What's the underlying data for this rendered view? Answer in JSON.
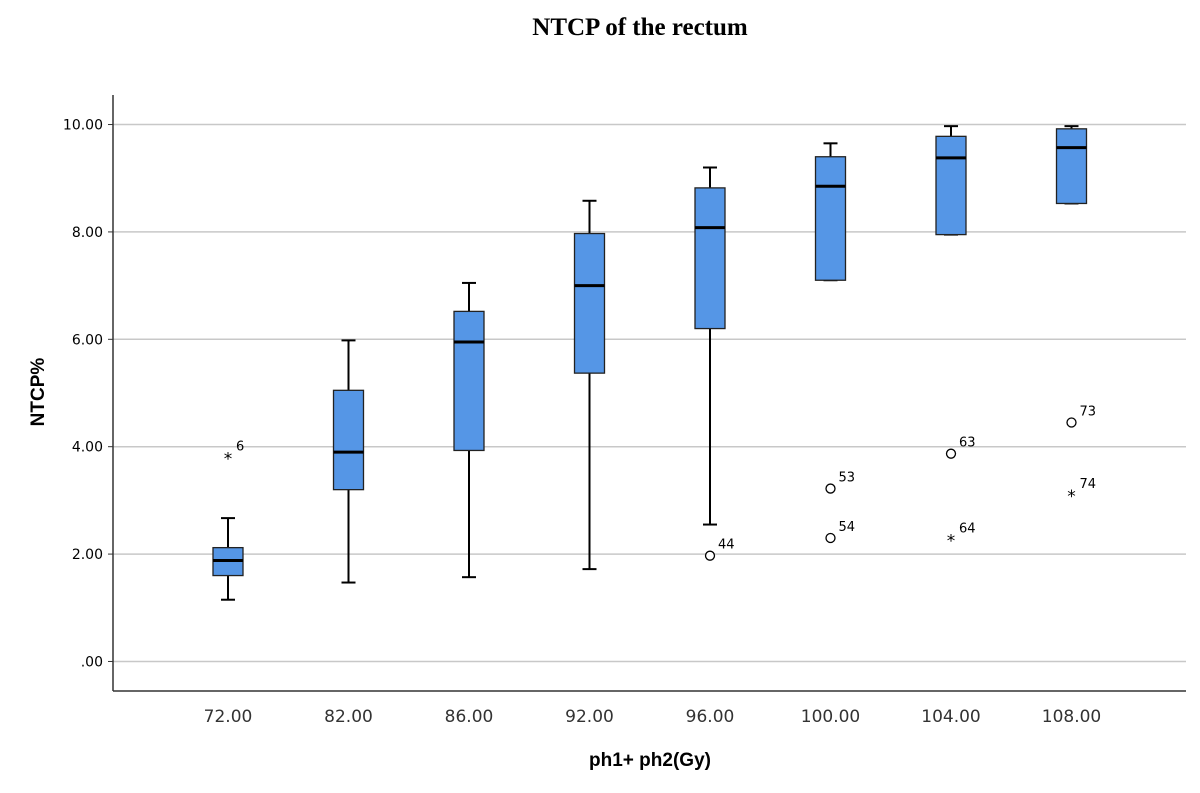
{
  "chart_data": {
    "type": "boxplot",
    "title": "NTCP of the rectum",
    "xlabel": "ph1+ ph2(Gy)",
    "ylabel": "NTCP%",
    "ylim": [
      -0.55,
      10.55
    ],
    "yticks": [
      0,
      2,
      4,
      6,
      8,
      10
    ],
    "ytick_labels": [
      ".00",
      "2.00",
      "4.00",
      "6.00",
      "8.00",
      "10.00"
    ],
    "grid": "horizontal",
    "box_color": "#5596E6",
    "categories": [
      "72.00",
      "82.00",
      "86.00",
      "92.00",
      "96.00",
      "100.00",
      "104.00",
      "108.00"
    ],
    "boxes": [
      {
        "category": "72.00",
        "whisker_low": 1.15,
        "q1": 1.6,
        "median": 1.88,
        "q3": 2.12,
        "whisker_high": 2.67
      },
      {
        "category": "82.00",
        "whisker_low": 1.47,
        "q1": 3.2,
        "median": 3.9,
        "q3": 5.05,
        "whisker_high": 5.98
      },
      {
        "category": "86.00",
        "whisker_low": 1.57,
        "q1": 3.93,
        "median": 5.95,
        "q3": 6.52,
        "whisker_high": 7.05
      },
      {
        "category": "92.00",
        "whisker_low": 1.72,
        "q1": 5.37,
        "median": 7.0,
        "q3": 7.97,
        "whisker_high": 8.58
      },
      {
        "category": "96.00",
        "whisker_low": 2.55,
        "q1": 6.2,
        "median": 8.08,
        "q3": 8.82,
        "whisker_high": 9.2
      },
      {
        "category": "100.00",
        "whisker_low": 7.1,
        "q1": 7.1,
        "median": 8.85,
        "q3": 9.4,
        "whisker_high": 9.65
      },
      {
        "category": "104.00",
        "whisker_low": 7.95,
        "q1": 7.95,
        "median": 9.38,
        "q3": 9.78,
        "whisker_high": 9.97
      },
      {
        "category": "108.00",
        "whisker_low": 8.53,
        "q1": 8.53,
        "median": 9.57,
        "q3": 9.92,
        "whisker_high": 9.97
      }
    ],
    "outliers": [
      {
        "category": "72.00",
        "value": 3.8,
        "label": "6",
        "marker": "star"
      },
      {
        "category": "96.00",
        "value": 1.97,
        "label": "44",
        "marker": "circle"
      },
      {
        "category": "100.00",
        "value": 3.22,
        "label": "53",
        "marker": "circle"
      },
      {
        "category": "100.00",
        "value": 2.3,
        "label": "54",
        "marker": "circle"
      },
      {
        "category": "104.00",
        "value": 3.87,
        "label": "63",
        "marker": "circle"
      },
      {
        "category": "104.00",
        "value": 2.27,
        "label": "64",
        "marker": "star"
      },
      {
        "category": "108.00",
        "value": 4.45,
        "label": "73",
        "marker": "circle"
      },
      {
        "category": "108.00",
        "value": 3.1,
        "label": "74",
        "marker": "star"
      }
    ]
  }
}
